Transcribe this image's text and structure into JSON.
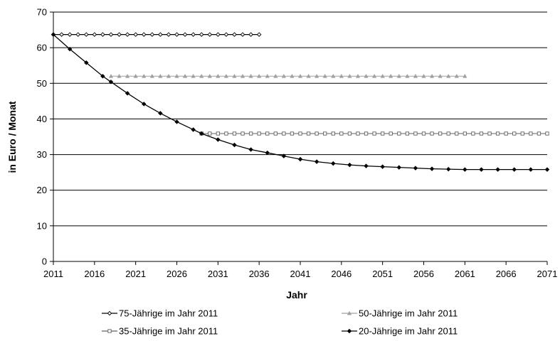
{
  "chart_data": {
    "type": "line",
    "title": "",
    "xlabel": "Jahr",
    "ylabel": "in Euro / Monat",
    "xlim": [
      2011,
      2071
    ],
    "ylim": [
      0,
      70
    ],
    "xticks": [
      2011,
      2016,
      2021,
      2026,
      2031,
      2036,
      2041,
      2046,
      2051,
      2056,
      2061,
      2066,
      2071
    ],
    "yticks": [
      0,
      10,
      20,
      30,
      40,
      50,
      60,
      70
    ],
    "grid": "horizontal",
    "legend_position": "bottom",
    "colors": {
      "s75": "#000000",
      "s50": "#a0a0a0",
      "s35": "#606060",
      "s20": "#000000"
    },
    "series": [
      {
        "name": "75-Jährige im Jahr 2011",
        "marker": "diamond-open",
        "x_start": 2011,
        "x_end": 2036,
        "values": [
          63.7,
          63.7
        ]
      },
      {
        "name": "50-Jährige im Jahr 2011",
        "marker": "triangle",
        "x_start": 2018,
        "x_end": 2061,
        "values": [
          52.0,
          52.0
        ]
      },
      {
        "name": "35-Jährige im Jahr 2011",
        "marker": "square-open",
        "x_start": 2029,
        "x_end": 2071,
        "values": [
          35.9,
          35.9
        ]
      },
      {
        "name": "20-Jährige im Jahr 2011",
        "marker": "diamond-filled",
        "x": [
          2011,
          2013,
          2015,
          2017,
          2018,
          2020,
          2022,
          2024,
          2026,
          2028,
          2029,
          2031,
          2033,
          2035,
          2037,
          2039,
          2041,
          2043,
          2045,
          2047,
          2049,
          2051,
          2053,
          2055,
          2057,
          2059,
          2061,
          2063,
          2065,
          2067,
          2069,
          2071
        ],
        "values": [
          63.7,
          59.6,
          55.8,
          52.0,
          50.4,
          47.2,
          44.2,
          41.6,
          39.2,
          37.0,
          35.9,
          34.2,
          32.7,
          31.4,
          30.5,
          29.6,
          28.7,
          28.0,
          27.5,
          27.1,
          26.8,
          26.6,
          26.4,
          26.2,
          26.0,
          25.9,
          25.8,
          25.8,
          25.8,
          25.8,
          25.8,
          25.8
        ]
      }
    ]
  }
}
